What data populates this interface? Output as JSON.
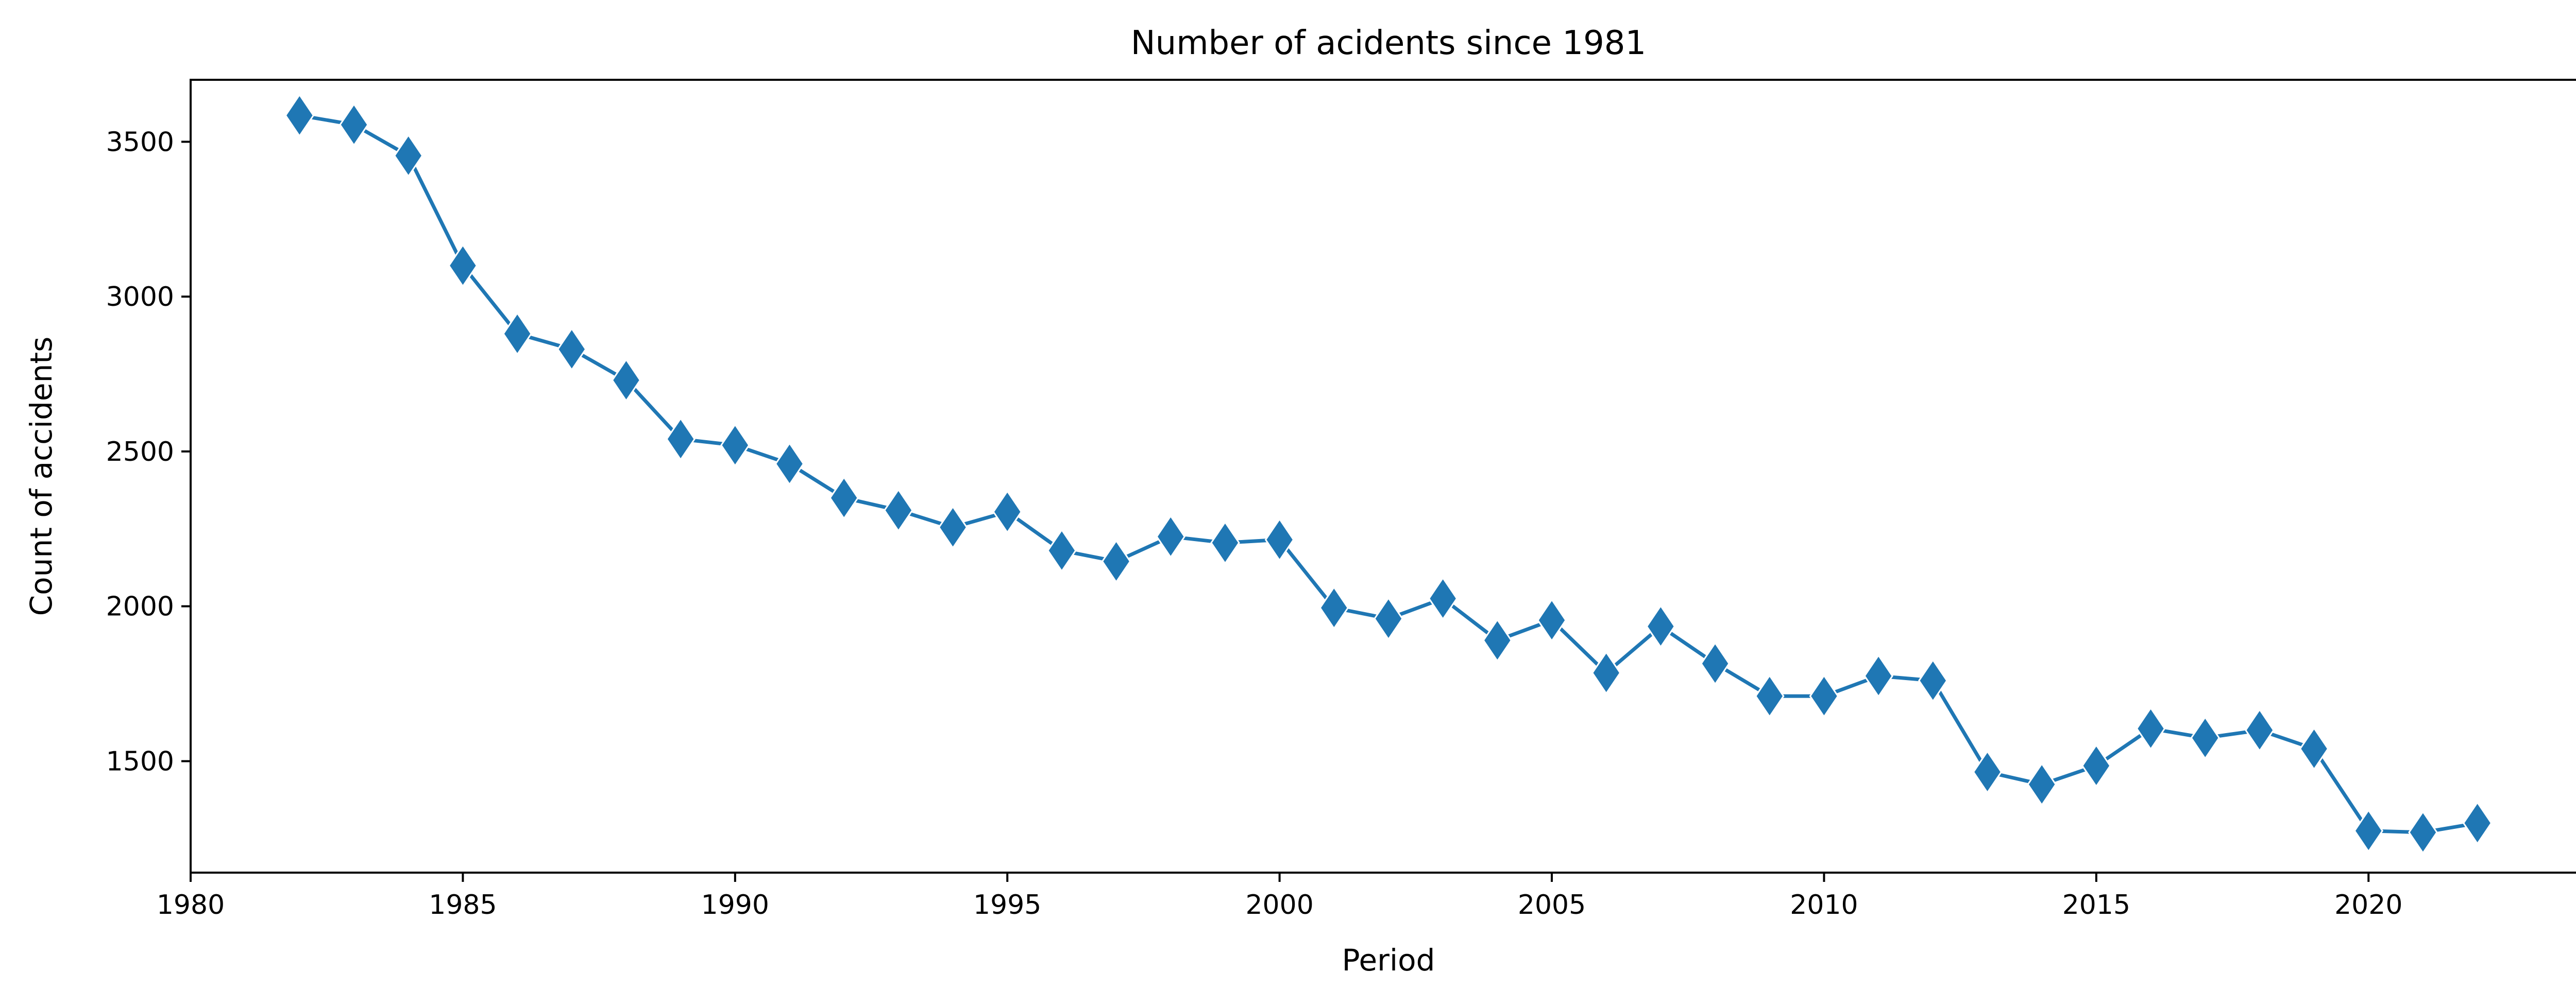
{
  "chart_data": {
    "type": "line",
    "title": "Number of acidents since 1981",
    "xlabel": "Period",
    "ylabel": "Count of accidents",
    "xlim": [
      1980,
      2024
    ],
    "ylim": [
      1140,
      3700
    ],
    "xticks": [
      1980,
      1985,
      1990,
      1995,
      2000,
      2005,
      2010,
      2015,
      2020
    ],
    "yticks": [
      1500,
      2000,
      2500,
      3000,
      3500
    ],
    "grid": false,
    "marker": "diamond",
    "color": "#1f77b4",
    "series": [
      {
        "x": [
          1982,
          1983,
          1984,
          1985,
          1986,
          1987,
          1988,
          1989,
          1990,
          1991,
          1992,
          1993,
          1994,
          1995,
          1996,
          1997,
          1998,
          1999,
          2000,
          2001,
          2002,
          2003,
          2004,
          2005,
          2006,
          2007,
          2008,
          2009,
          2010,
          2011,
          2012,
          2013,
          2014,
          2015,
          2016,
          2017,
          2018,
          2019,
          2020,
          2021,
          2022
        ],
        "y": [
          3585,
          3555,
          3455,
          3100,
          2880,
          2830,
          2730,
          2540,
          2520,
          2460,
          2350,
          2310,
          2255,
          2305,
          2180,
          2145,
          2225,
          2205,
          2215,
          1995,
          1960,
          2025,
          1890,
          1955,
          1785,
          1935,
          1815,
          1710,
          1710,
          1775,
          1760,
          1465,
          1425,
          1485,
          1605,
          1575,
          1600,
          1540,
          1275,
          1270,
          1300
        ]
      }
    ]
  }
}
